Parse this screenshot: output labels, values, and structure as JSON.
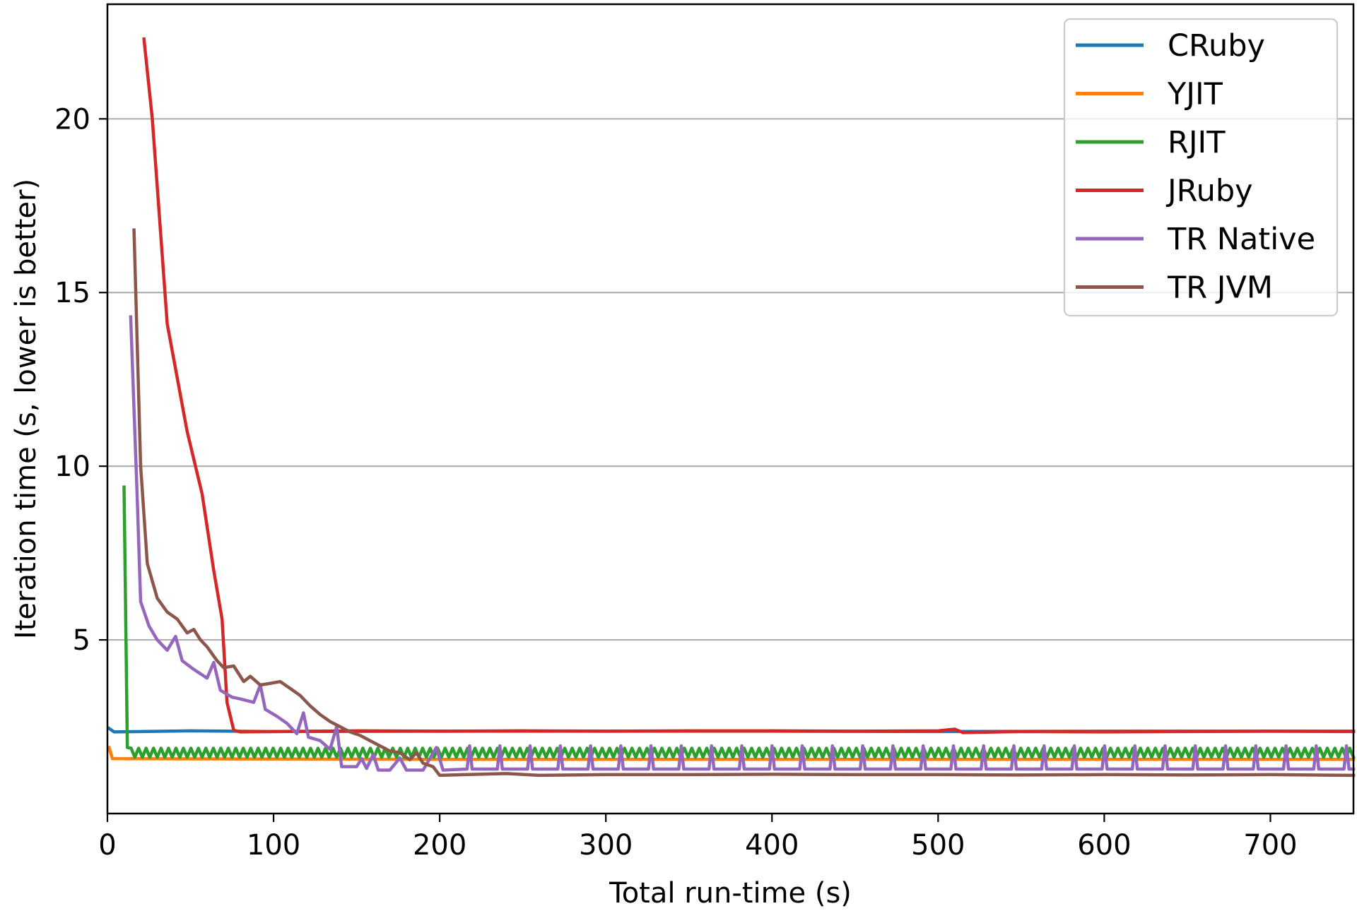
{
  "chart_data": {
    "type": "line",
    "xlabel": "Total run-time (s)",
    "ylabel": "Iteration time (s, lower is better)",
    "xlim": [
      0,
      750
    ],
    "ylim": [
      0,
      23.3
    ],
    "x_ticks": [
      0,
      100,
      200,
      300,
      400,
      500,
      600,
      700
    ],
    "y_ticks": [
      5,
      10,
      15,
      20
    ],
    "grid": "horizontal",
    "legend_position": "top-right",
    "series": [
      {
        "name": "CRuby",
        "color": "#1f77b4",
        "points": [
          [
            1,
            2.45
          ],
          [
            4,
            2.35
          ],
          [
            50,
            2.38
          ],
          [
            100,
            2.36
          ],
          [
            200,
            2.37
          ],
          [
            300,
            2.37
          ],
          [
            400,
            2.37
          ],
          [
            500,
            2.36
          ],
          [
            600,
            2.37
          ],
          [
            700,
            2.37
          ],
          [
            750,
            2.37
          ]
        ]
      },
      {
        "name": "YJIT",
        "color": "#ff7f0e",
        "points": [
          [
            1,
            1.9
          ],
          [
            3,
            1.58
          ],
          [
            100,
            1.57
          ],
          [
            200,
            1.56
          ],
          [
            300,
            1.56
          ],
          [
            400,
            1.56
          ],
          [
            500,
            1.56
          ],
          [
            600,
            1.56
          ],
          [
            700,
            1.56
          ],
          [
            750,
            1.56
          ]
        ]
      },
      {
        "name": "RJIT",
        "color": "#2ca02c",
        "points": [
          [
            10,
            9.4
          ],
          [
            12,
            1.9
          ]
        ],
        "oscillation": {
          "x_start": 12,
          "x_end": 750,
          "period": 4.5,
          "low": 1.62,
          "high": 1.88
        }
      },
      {
        "name": "JRuby",
        "color": "#d62728",
        "points": [
          [
            22,
            22.3
          ],
          [
            27,
            20.0
          ],
          [
            36,
            14.1
          ],
          [
            48,
            11.0
          ],
          [
            57,
            9.2
          ],
          [
            64,
            7.0
          ],
          [
            69,
            5.6
          ],
          [
            72,
            3.2
          ],
          [
            76,
            2.4
          ],
          [
            80,
            2.35
          ],
          [
            100,
            2.36
          ],
          [
            150,
            2.38
          ],
          [
            200,
            2.37
          ],
          [
            250,
            2.38
          ],
          [
            300,
            2.37
          ],
          [
            350,
            2.38
          ],
          [
            400,
            2.38
          ],
          [
            450,
            2.37
          ],
          [
            500,
            2.38
          ],
          [
            510,
            2.43
          ],
          [
            515,
            2.33
          ],
          [
            550,
            2.36
          ],
          [
            600,
            2.35
          ],
          [
            650,
            2.36
          ],
          [
            700,
            2.37
          ],
          [
            750,
            2.36
          ]
        ]
      },
      {
        "name": "TR Native",
        "color": "#9467bd",
        "points": [
          [
            14,
            14.3
          ],
          [
            18,
            9.0
          ],
          [
            20,
            6.1
          ],
          [
            25,
            5.4
          ],
          [
            30,
            5.0
          ],
          [
            36,
            4.7
          ],
          [
            41,
            5.1
          ],
          [
            45,
            4.4
          ],
          [
            52,
            4.15
          ],
          [
            60,
            3.9
          ],
          [
            64,
            4.35
          ],
          [
            68,
            3.55
          ],
          [
            75,
            3.35
          ],
          [
            80,
            3.3
          ],
          [
            88,
            3.2
          ],
          [
            92,
            3.7
          ],
          [
            95,
            3.0
          ],
          [
            102,
            2.8
          ],
          [
            108,
            2.6
          ],
          [
            114,
            2.3
          ],
          [
            118,
            2.9
          ],
          [
            121,
            2.2
          ],
          [
            128,
            2.1
          ],
          [
            134,
            1.85
          ],
          [
            138,
            2.5
          ],
          [
            141,
            1.35
          ],
          [
            150,
            1.35
          ],
          [
            153,
            1.58
          ],
          [
            156,
            1.3
          ],
          [
            160,
            1.7
          ],
          [
            163,
            1.25
          ],
          [
            170,
            1.25
          ],
          [
            176,
            1.6
          ],
          [
            180,
            1.25
          ],
          [
            190,
            1.25
          ],
          [
            198,
            1.9
          ],
          [
            202,
            1.25
          ],
          [
            750,
            1.25
          ]
        ],
        "spikes": {
          "x_start": 218,
          "x_end": 750,
          "period": 18.2,
          "base": 1.28,
          "peak": 1.95
        }
      },
      {
        "name": "TR JVM",
        "color": "#8c564b",
        "points": [
          [
            16,
            16.8
          ],
          [
            20,
            10.0
          ],
          [
            24,
            7.2
          ],
          [
            30,
            6.2
          ],
          [
            36,
            5.8
          ],
          [
            42,
            5.6
          ],
          [
            48,
            5.2
          ],
          [
            52,
            5.3
          ],
          [
            56,
            5.0
          ],
          [
            60,
            4.8
          ],
          [
            66,
            4.4
          ],
          [
            70,
            4.2
          ],
          [
            76,
            4.25
          ],
          [
            82,
            3.8
          ],
          [
            86,
            3.95
          ],
          [
            92,
            3.7
          ],
          [
            98,
            3.75
          ],
          [
            104,
            3.8
          ],
          [
            110,
            3.6
          ],
          [
            116,
            3.4
          ],
          [
            122,
            3.1
          ],
          [
            128,
            2.85
          ],
          [
            134,
            2.65
          ],
          [
            140,
            2.5
          ],
          [
            146,
            2.35
          ],
          [
            152,
            2.25
          ],
          [
            158,
            2.1
          ],
          [
            164,
            1.95
          ],
          [
            170,
            1.8
          ],
          [
            176,
            1.75
          ],
          [
            182,
            1.55
          ],
          [
            186,
            1.75
          ],
          [
            190,
            1.45
          ],
          [
            196,
            1.35
          ],
          [
            200,
            1.1
          ],
          [
            215,
            1.12
          ],
          [
            240,
            1.15
          ],
          [
            260,
            1.1
          ],
          [
            300,
            1.12
          ],
          [
            350,
            1.12
          ],
          [
            400,
            1.13
          ],
          [
            450,
            1.12
          ],
          [
            500,
            1.12
          ],
          [
            550,
            1.11
          ],
          [
            600,
            1.12
          ],
          [
            650,
            1.11
          ],
          [
            700,
            1.12
          ],
          [
            750,
            1.1
          ]
        ]
      }
    ]
  }
}
